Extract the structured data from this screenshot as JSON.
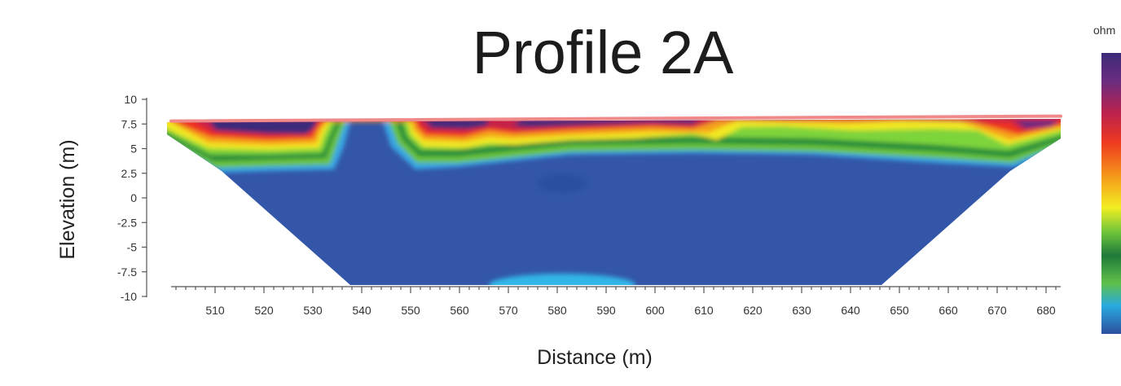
{
  "chart_data": {
    "type": "heatmap",
    "title": "Profile 2A",
    "xlabel": "Distance (m)",
    "ylabel": "Elevation (m)",
    "xlim": [
      501,
      683
    ],
    "ylim": [
      -10,
      10
    ],
    "x_ticks": [
      "510",
      "520",
      "530",
      "540",
      "550",
      "560",
      "570",
      "580",
      "590",
      "600",
      "610",
      "620",
      "630",
      "640",
      "650",
      "660",
      "670",
      "680"
    ],
    "y_ticks": [
      "10",
      "7.5",
      "5",
      "2.5",
      "0",
      "-2.5",
      "-5",
      "-7.5",
      "-10"
    ],
    "colorbar": {
      "unit_label": "ohm",
      "colors": [
        "#3d2a7a",
        "#c0224a",
        "#ee3a1f",
        "#f5a21a",
        "#f2ee22",
        "#1f8a3a",
        "#6cc43a",
        "#29a9e0",
        "#2c4f9e"
      ]
    },
    "surface_line": {
      "color": "#f08a8a",
      "x": [
        501,
        683
      ],
      "y": [
        7.8,
        8.3
      ]
    },
    "grid": false
  }
}
